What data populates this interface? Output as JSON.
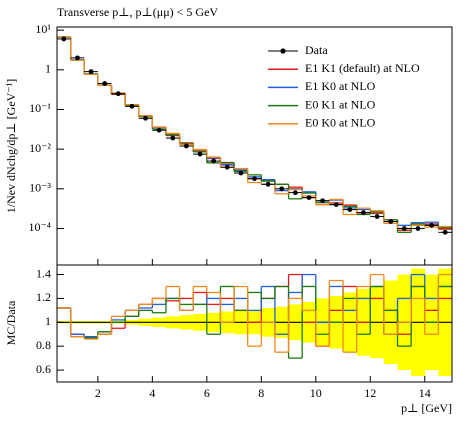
{
  "chart_data": {
    "type": "histogram-ratio",
    "title": "Transverse p⊥, p⊥(μμ) < 5 GeV",
    "y_label": "1/Nev dNchg/dp⊥ [GeV⁻¹]",
    "ratio_label": "MC/Data",
    "x_label": "p⊥ [GeV]",
    "bins": [
      0.5,
      1,
      1.5,
      2,
      2.5,
      3,
      3.5,
      4,
      4.5,
      5,
      5.5,
      6,
      6.5,
      7,
      7.5,
      8,
      8.5,
      9,
      9.5,
      10,
      10.5,
      11,
      11.5,
      12,
      12.5,
      13,
      13.5,
      14,
      14.5,
      15
    ],
    "xlim": [
      0.5,
      15
    ],
    "xticks": [
      2,
      4,
      6,
      8,
      10,
      12,
      14
    ],
    "ylim": [
      1.2e-05,
      12
    ],
    "log_y": true,
    "yticks": [
      {
        "value": 10,
        "label": "10¹"
      },
      1,
      {
        "value": 0.1,
        "label": "10⁻¹"
      },
      {
        "value": 0.01,
        "label": "10⁻²"
      },
      {
        "value": 0.001,
        "label": "10⁻³"
      },
      {
        "value": 0.0001,
        "label": "10⁻⁴"
      }
    ],
    "ratio_ylim": [
      0.5,
      1.48
    ],
    "ratio_yticks": [
      0.6,
      0.8,
      1,
      1.2,
      1.4
    ],
    "legend": "upper right",
    "data": {
      "name": "Data",
      "color": "#000000",
      "values": [
        6,
        2,
        0.9,
        0.45,
        0.25,
        0.12,
        0.06,
        0.03,
        0.019,
        0.012,
        0.0075,
        0.005,
        0.0035,
        0.0025,
        0.0018,
        0.0013,
        0.001,
        0.0008,
        0.0006,
        0.0005,
        0.0004,
        0.0003,
        0.00025,
        0.0002,
        0.00015,
        0.0001,
        0.0001,
        0.00012,
        8e-05
      ],
      "band_color": "#ffff00",
      "band_low": [
        0.99,
        0.99,
        0.99,
        0.99,
        0.99,
        0.98,
        0.97,
        0.96,
        0.95,
        0.94,
        0.93,
        0.92,
        0.91,
        0.9,
        0.9,
        0.88,
        0.87,
        0.85,
        0.83,
        0.8,
        0.78,
        0.75,
        0.72,
        0.7,
        0.65,
        0.6,
        0.55,
        0.6,
        0.55
      ],
      "band_high": [
        1.01,
        1.01,
        1.01,
        1.01,
        1.01,
        1.02,
        1.03,
        1.04,
        1.05,
        1.06,
        1.07,
        1.08,
        1.09,
        1.1,
        1.1,
        1.12,
        1.13,
        1.15,
        1.17,
        1.2,
        1.22,
        1.25,
        1.28,
        1.3,
        1.35,
        1.4,
        1.45,
        1.4,
        1.45
      ]
    },
    "series": [
      {
        "name": "E1 K1 (default) at NLO",
        "color": "#e41a1c",
        "values": [
          6.7,
          1.8,
          0.78,
          0.41,
          0.24,
          0.126,
          0.069,
          0.036,
          0.022,
          0.0144,
          0.0094,
          0.0058,
          0.0042,
          0.0028,
          0.0018,
          0.0016,
          0.0013,
          0.0011,
          0.0006,
          0.0004,
          0.00044,
          0.00039,
          0.00025,
          0.00024,
          0.000165,
          9e-05,
          0.00013,
          0.00013,
          9.6e-05
        ],
        "ratio": [
          1.12,
          0.9,
          0.87,
          0.9,
          0.95,
          1.05,
          1.15,
          1.2,
          1.18,
          1.2,
          1.25,
          1.15,
          1.2,
          1.1,
          1.0,
          1.2,
          1.3,
          1.4,
          1.0,
          0.8,
          1.1,
          1.3,
          1.0,
          1.2,
          1.1,
          0.9,
          1.3,
          1.1,
          1.2
        ]
      },
      {
        "name": "E1 K0 at NLO",
        "color": "#1f5fe0",
        "values": [
          6.7,
          1.8,
          0.79,
          0.41,
          0.255,
          0.132,
          0.067,
          0.035,
          0.023,
          0.0132,
          0.0086,
          0.006,
          0.004,
          0.003,
          0.002,
          0.0017,
          0.0009,
          0.001,
          0.00084,
          0.0005,
          0.00052,
          0.00033,
          0.0003,
          0.00026,
          0.000135,
          0.00012,
          0.00014,
          0.000144,
          0.000104
        ],
        "ratio": [
          1.12,
          0.9,
          0.88,
          0.92,
          1.02,
          1.1,
          1.12,
          1.15,
          1.2,
          1.1,
          1.15,
          1.2,
          1.15,
          1.2,
          1.1,
          1.3,
          0.9,
          1.25,
          1.4,
          1.0,
          1.3,
          1.1,
          1.2,
          1.3,
          0.9,
          1.2,
          1.4,
          1.2,
          1.3
        ]
      },
      {
        "name": "E0 K1 at NLO",
        "color": "#1a7a10",
        "values": [
          6.7,
          1.76,
          0.78,
          0.41,
          0.25,
          0.126,
          0.066,
          0.032,
          0.023,
          0.0138,
          0.0086,
          0.0045,
          0.0046,
          0.00275,
          0.00225,
          0.00156,
          0.0013,
          0.00056,
          0.00078,
          0.00045,
          0.0004,
          0.00036,
          0.000225,
          0.00026,
          0.000165,
          8e-05,
          0.00013,
          0.00012,
          0.000104
        ],
        "ratio": [
          1.12,
          0.88,
          0.87,
          0.92,
          1.0,
          1.05,
          1.1,
          1.08,
          1.2,
          1.15,
          1.15,
          0.9,
          1.3,
          1.1,
          1.25,
          1.2,
          1.3,
          0.7,
          1.3,
          0.9,
          1.0,
          1.2,
          0.9,
          1.3,
          1.1,
          0.8,
          1.3,
          1.0,
          1.3
        ]
      },
      {
        "name": "E0 K0 at NLO",
        "color": "#f08a1c",
        "values": [
          6.7,
          1.76,
          0.77,
          0.405,
          0.26,
          0.132,
          0.069,
          0.036,
          0.025,
          0.0132,
          0.0098,
          0.0063,
          0.0035,
          0.00325,
          0.00144,
          0.0013,
          0.00075,
          0.00096,
          0.00066,
          0.0004,
          0.00054,
          0.000225,
          0.000325,
          0.00028,
          0.000135,
          0.0001,
          0.00012,
          0.000108,
          0.000112
        ],
        "ratio": [
          1.12,
          0.88,
          0.86,
          0.9,
          1.05,
          1.1,
          1.15,
          1.2,
          1.3,
          1.1,
          1.3,
          1.25,
          1.0,
          1.3,
          0.8,
          1.0,
          0.75,
          1.2,
          1.1,
          0.8,
          1.35,
          0.75,
          1.3,
          1.4,
          0.9,
          1.0,
          1.2,
          0.9,
          1.4
        ]
      }
    ]
  }
}
